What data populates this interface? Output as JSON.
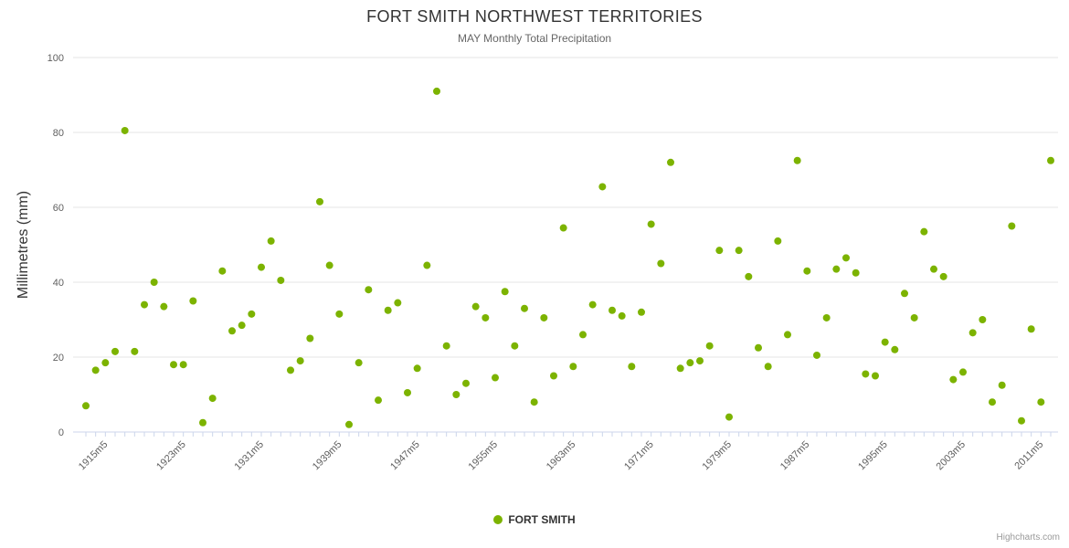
{
  "credit": "Highcharts.com",
  "chart_data": {
    "type": "scatter",
    "title": "FORT SMITH NORTHWEST TERRITORIES",
    "subtitle": "MAY Monthly Total Precipitation",
    "xlabel": "",
    "ylabel": "Millimetres (mm)",
    "ylim": [
      0,
      100
    ],
    "yticks": [
      0,
      20,
      40,
      60,
      80,
      100
    ],
    "grid": "horizontal",
    "legend_position": "bottom",
    "marker": {
      "shape": "circle",
      "radius": 4
    },
    "colors": {
      "point": "#7cb300",
      "grid": "#e6e6e6",
      "axis": "#ccd6eb",
      "title": "#333333",
      "subtitle": "#666666",
      "tick_label": "#606060"
    },
    "xtick_labels": [
      "1915m5",
      "1923m5",
      "1931m5",
      "1939m5",
      "1947m5",
      "1955m5",
      "1963m5",
      "1971m5",
      "1979m5",
      "1987m5",
      "1995m5",
      "2003m5",
      "2011m5"
    ],
    "series": [
      {
        "name": "FORT SMITH",
        "categories": [
          "1913m5",
          "1914m5",
          "1915m5",
          "1916m5",
          "1917m5",
          "1918m5",
          "1919m5",
          "1920m5",
          "1921m5",
          "1922m5",
          "1923m5",
          "1924m5",
          "1925m5",
          "1926m5",
          "1927m5",
          "1928m5",
          "1929m5",
          "1930m5",
          "1931m5",
          "1932m5",
          "1933m5",
          "1934m5",
          "1935m5",
          "1936m5",
          "1937m5",
          "1938m5",
          "1939m5",
          "1940m5",
          "1941m5",
          "1942m5",
          "1943m5",
          "1944m5",
          "1945m5",
          "1946m5",
          "1947m5",
          "1948m5",
          "1949m5",
          "1950m5",
          "1951m5",
          "1952m5",
          "1953m5",
          "1954m5",
          "1955m5",
          "1956m5",
          "1957m5",
          "1958m5",
          "1959m5",
          "1960m5",
          "1961m5",
          "1962m5",
          "1963m5",
          "1964m5",
          "1965m5",
          "1966m5",
          "1967m5",
          "1968m5",
          "1969m5",
          "1970m5",
          "1971m5",
          "1972m5",
          "1973m5",
          "1974m5",
          "1975m5",
          "1976m5",
          "1977m5",
          "1978m5",
          "1979m5",
          "1980m5",
          "1981m5",
          "1982m5",
          "1983m5",
          "1984m5",
          "1985m5",
          "1986m5",
          "1987m5",
          "1988m5",
          "1989m5",
          "1990m5",
          "1991m5",
          "1992m5",
          "1993m5",
          "1994m5",
          "1995m5",
          "1996m5",
          "1997m5",
          "1998m5",
          "1999m5",
          "2000m5",
          "2001m5",
          "2002m5",
          "2003m5",
          "2004m5",
          "2005m5",
          "2006m5",
          "2007m5",
          "2008m5",
          "2009m5",
          "2010m5",
          "2011m5",
          "2012m5"
        ],
        "values": [
          7,
          16.5,
          18.5,
          21.5,
          80.5,
          21.5,
          34,
          40,
          33.5,
          18,
          18,
          35,
          2.5,
          9,
          43,
          27,
          28.5,
          31.5,
          44,
          51,
          40.5,
          16.5,
          19,
          25,
          61.5,
          44.5,
          31.5,
          2,
          18.5,
          38,
          8.5,
          32.5,
          34.5,
          10.5,
          17,
          44.5,
          91,
          23,
          10,
          13,
          33.5,
          30.5,
          14.5,
          37.5,
          23,
          33,
          8,
          30.5,
          15,
          54.5,
          17.5,
          26,
          34,
          65.5,
          32.5,
          31,
          17.5,
          32,
          55.5,
          45,
          72,
          17,
          18.5,
          19,
          23,
          48.5,
          4,
          48.5,
          41.5,
          22.5,
          17.5,
          51,
          26,
          72.5,
          43,
          20.5,
          30.5,
          43.5,
          46.5,
          42.5,
          15.5,
          15,
          24,
          22,
          37,
          30.5,
          53.5,
          43.5,
          41.5,
          14,
          16,
          26.5,
          30,
          8,
          12.5,
          55,
          3,
          27.5,
          8,
          72.5
        ]
      }
    ]
  }
}
